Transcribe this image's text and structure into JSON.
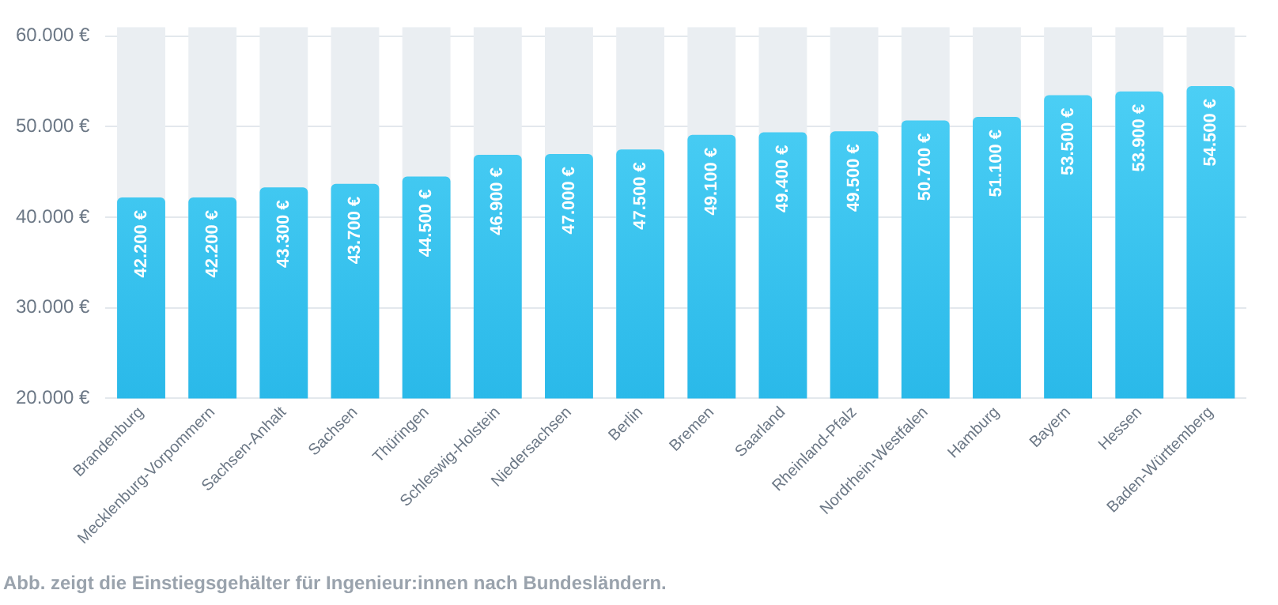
{
  "chart_data": {
    "type": "bar",
    "categories": [
      "Brandenburg",
      "Mecklenburg-Vorpommern",
      "Sachsen-Anhalt",
      "Sachsen",
      "Thüringen",
      "Schleswig-Holstein",
      "Niedersachsen",
      "Berlin",
      "Bremen",
      "Saarland",
      "Rheinland-Pfalz",
      "Nordrhein-Westfalen",
      "Hamburg",
      "Bayern",
      "Hessen",
      "Baden-Württemberg"
    ],
    "values": [
      42200,
      42200,
      43300,
      43700,
      44500,
      46900,
      47000,
      47500,
      49100,
      49400,
      49500,
      50700,
      51100,
      53500,
      53900,
      54500
    ],
    "value_labels": [
      "42.200 €",
      "42.200 €",
      "43.300 €",
      "43.700 €",
      "44.500 €",
      "46.900 €",
      "47.000 €",
      "47.500 €",
      "49.100 €",
      "49.400 €",
      "49.500 €",
      "50.700 €",
      "51.100 €",
      "53.500 €",
      "53.900 €",
      "54.500 €"
    ],
    "color": "#2ab9e9",
    "ylim": [
      20000,
      61000
    ],
    "yticks": [
      {
        "value": 20000,
        "label": "20.000 €"
      },
      {
        "value": 30000,
        "label": "30.000 €"
      },
      {
        "value": 40000,
        "label": "40.000 €"
      },
      {
        "value": 50000,
        "label": "50.000 €"
      },
      {
        "value": 60000,
        "label": "60.000 €"
      }
    ],
    "grid": "y",
    "legend": false,
    "annotations": [
      "Abb. zeigt die Einstiegsgehälter für Ingenieur:innen nach Bundesländern."
    ]
  }
}
